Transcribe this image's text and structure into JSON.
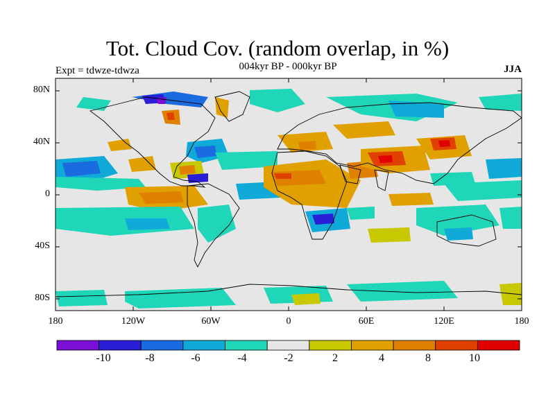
{
  "title": "Tot. Cloud Cov. (random overlap, in %)",
  "subtitle": "004kyr BP - 000kyr BP",
  "experiment_label": "Expt = tdwze-tdwza",
  "season": "JJA",
  "map": {
    "y_ticks": [
      "80N",
      "40N",
      "0",
      "40S",
      "80S"
    ],
    "x_ticks": [
      "180",
      "120W",
      "60W",
      "0",
      "60E",
      "120E",
      "180"
    ],
    "background_color": "#e6e6e6"
  },
  "colorbar": {
    "colors": [
      "#7a0fd6",
      "#2a1fd6",
      "#1a6ae0",
      "#10aad8",
      "#20d6b8",
      "#e6e6e6",
      "#c8c800",
      "#e0a000",
      "#e08000",
      "#e04000",
      "#e00000"
    ],
    "labels": [
      "-10",
      "-8",
      "-6",
      "-4",
      "-2",
      "2",
      "4",
      "8",
      "10"
    ]
  }
}
